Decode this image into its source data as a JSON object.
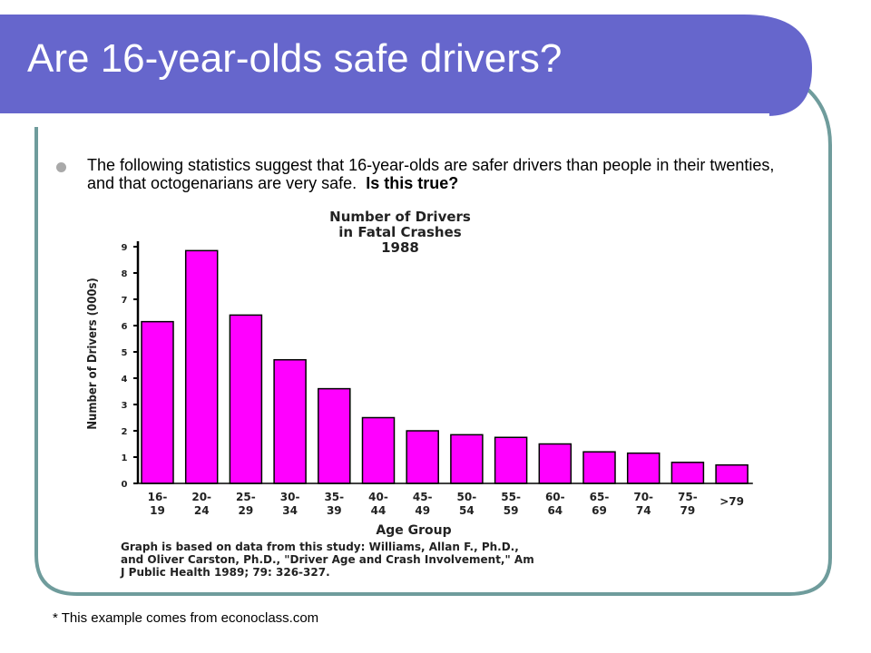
{
  "slide": {
    "title": "Are 16-year-olds safe drivers?",
    "bullet_text": "The following statistics suggest that 16-year-olds are safer drivers than people in their twenties, and that octogenarians are very safe.",
    "bullet_emphasis": "Is this true?",
    "footnote": "* This example comes from econoclass.com",
    "colors": {
      "header": "#6666cc",
      "frame": "#6f9c9c",
      "bars": "#ff00ff"
    }
  },
  "chart_data": {
    "type": "bar",
    "title": [
      "Number of Drivers",
      "in Fatal Crashes",
      "1988"
    ],
    "xlabel": "Age Group",
    "ylabel": "Number of Drivers (000s)",
    "ylim": [
      0,
      9
    ],
    "yticks": [
      "0",
      "1",
      "2",
      "3",
      "4",
      "5",
      "6",
      "7",
      "8",
      "9"
    ],
    "categories": [
      [
        "16-",
        "19"
      ],
      [
        "20-",
        "24"
      ],
      [
        "25-",
        "29"
      ],
      [
        "30-",
        "34"
      ],
      [
        "35-",
        "39"
      ],
      [
        "40-",
        "44"
      ],
      [
        "45-",
        "49"
      ],
      [
        "50-",
        "54"
      ],
      [
        "55-",
        "59"
      ],
      [
        "60-",
        "64"
      ],
      [
        "65-",
        "69"
      ],
      [
        "70-",
        "74"
      ],
      [
        "75-",
        "79"
      ],
      [
        ">79",
        ""
      ]
    ],
    "values": [
      6.15,
      8.85,
      6.4,
      4.7,
      3.6,
      2.5,
      2.0,
      1.85,
      1.75,
      1.5,
      1.2,
      1.15,
      0.8,
      0.7
    ],
    "source_note": [
      "Graph is based on data from this study:  Williams, Allan F., Ph.D.,",
      "and Oliver Carston, Ph.D., \"Driver Age and Crash Involvement,\" Am",
      "J Public Health 1989; 79: 326-327."
    ],
    "grid": false,
    "legend": "none"
  }
}
